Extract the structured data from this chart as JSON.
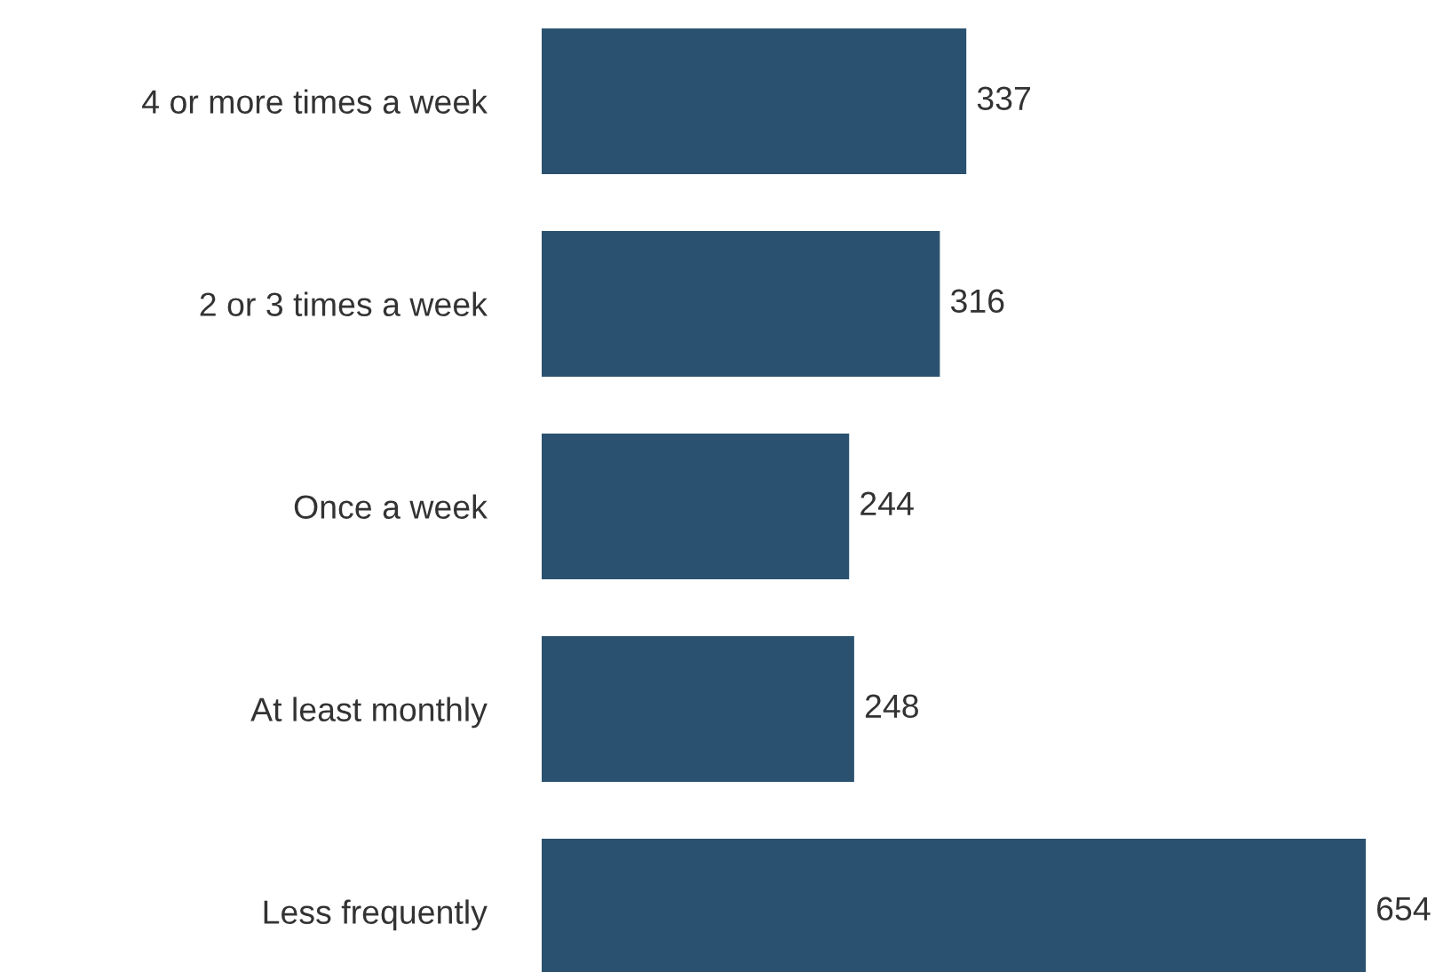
{
  "chart_data": {
    "type": "bar",
    "orientation": "horizontal",
    "categories": [
      "4 or more times a week",
      "2 or 3 times a week",
      "Once a week",
      "At least monthly",
      "Less frequently"
    ],
    "values": [
      337,
      316,
      244,
      248,
      654
    ],
    "color": "#2a5270",
    "data_labels": true,
    "grid": false,
    "legend": false
  }
}
